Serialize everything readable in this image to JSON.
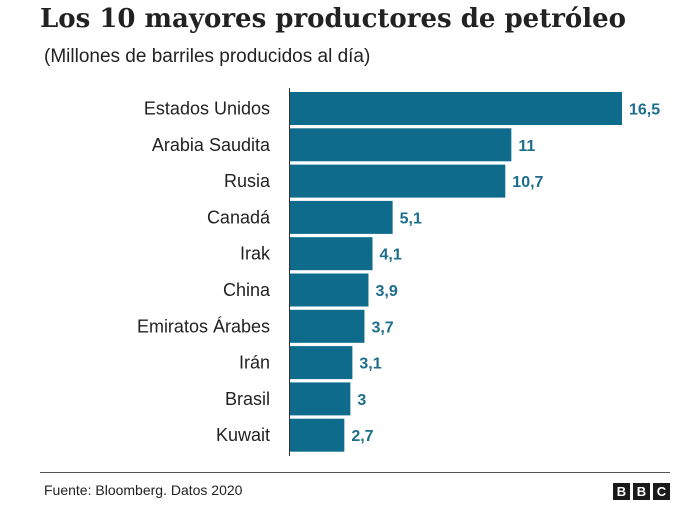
{
  "chart_data": {
    "type": "bar",
    "orientation": "horizontal",
    "title": "Los 10 mayores productores de petróleo",
    "subtitle": "(Millones de barriles producidos al día)",
    "categories": [
      "Estados Unidos",
      "Arabia Saudita",
      "Rusia",
      "Canadá",
      "Irak",
      "China",
      "Emiratos Árabes",
      "Irán",
      "Brasil",
      "Kuwait"
    ],
    "values": [
      16.5,
      11,
      10.7,
      5.1,
      4.1,
      3.9,
      3.7,
      3.1,
      3,
      2.7
    ],
    "value_labels": [
      "16,5",
      "11",
      "10,7",
      "5,1",
      "4,1",
      "3,9",
      "3,7",
      "3,1",
      "3",
      "2,7"
    ],
    "xlim": [
      0,
      16.5
    ],
    "grid": false,
    "bar_color": "#0e6b8c",
    "label_color": "#1d6d8c"
  },
  "footer": {
    "source": "Fuente: Bloomberg. Datos 2020",
    "logo_letters": [
      "B",
      "B",
      "C"
    ]
  }
}
